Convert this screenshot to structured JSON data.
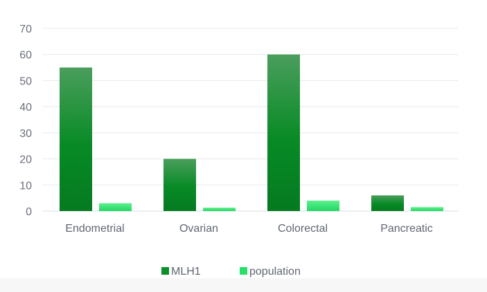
{
  "chart_data": {
    "type": "bar",
    "categories": [
      "Endometrial",
      "Ovarian",
      "Colorectal",
      "Pancreatic"
    ],
    "series": [
      {
        "name": "MLH1",
        "values": [
          55,
          20,
          60,
          6
        ],
        "color": "#0a8f2b"
      },
      {
        "name": "population",
        "values": [
          3,
          1.3,
          4,
          1.5
        ],
        "color": "#27e06a"
      }
    ],
    "ylim": [
      0,
      70
    ],
    "yticks": [
      0,
      10,
      20,
      30,
      40,
      50,
      60,
      70
    ],
    "grid": true,
    "legend_position": "bottom-center",
    "title": "",
    "xlabel": "",
    "ylabel": ""
  }
}
